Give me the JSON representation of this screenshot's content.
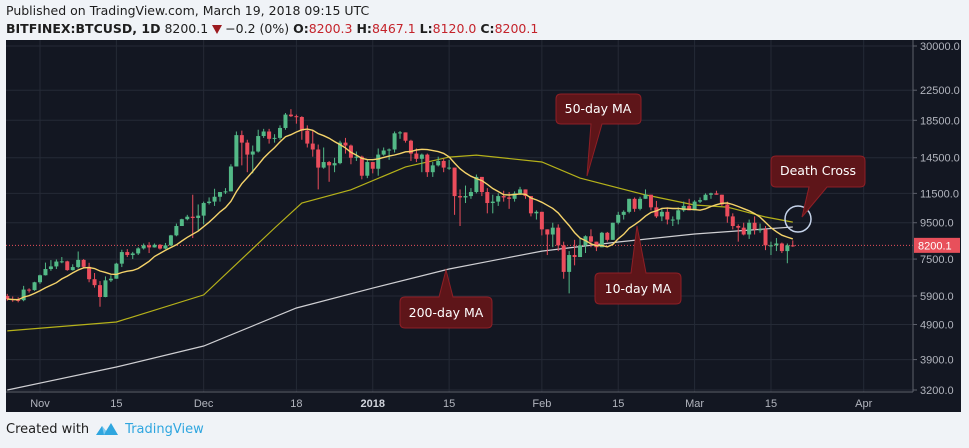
{
  "header": {
    "published": "Published on TradingView.com, March 19, 2018 09:15 UTC",
    "symbol": "BITFINEX:BTCUSD, 1D",
    "last": "8200.1",
    "change": "−0.2 (0%)",
    "o_label": "O:",
    "o": "8200.3",
    "h_label": "H:",
    "h": "8467.1",
    "l_label": "L:",
    "l": "8120.0",
    "c_label": "C:",
    "c": "8200.1"
  },
  "footer": {
    "created_with": "Created with",
    "brand": "TradingView",
    "brand_color": "#2fa6df"
  },
  "colors": {
    "background": "#131722",
    "grid": "#252a36",
    "up": "#53b987",
    "down": "#eb4d5c",
    "ma10": "#f5d36a",
    "ma50": "#b5b11a",
    "ma200": "#cfcfd3",
    "annotation": "#5e1519",
    "price_label": "#e8505b"
  },
  "chart_data": {
    "type": "candlestick",
    "title": "",
    "yscale": "log",
    "ylim": [
      3100,
      31000
    ],
    "xlim": [
      "2017-10-26",
      "2018-04-11"
    ],
    "grid": true,
    "y_ticks": [
      "30000.0",
      "22500.0",
      "18500.0",
      "14500.0",
      "11500.0",
      "9500.0",
      "7500.0",
      "5900.0",
      "4900.0",
      "3900.0",
      "3200.0"
    ],
    "x_ticks": [
      {
        "date": "2017-11-01",
        "label": "Nov"
      },
      {
        "date": "2017-11-15",
        "label": "15"
      },
      {
        "date": "2017-12-01",
        "label": "Dec"
      },
      {
        "date": "2017-12-18",
        "label": "18"
      },
      {
        "date": "2018-01-01",
        "label": "2018",
        "bold": true
      },
      {
        "date": "2018-01-15",
        "label": "15"
      },
      {
        "date": "2018-02-01",
        "label": "Feb"
      },
      {
        "date": "2018-02-15",
        "label": "15"
      },
      {
        "date": "2018-03-01",
        "label": "Mar"
      },
      {
        "date": "2018-03-15",
        "label": "15"
      },
      {
        "date": "2018-04-01",
        "label": "Apr"
      }
    ],
    "last_price": {
      "value": 8200.1,
      "label": "8200.1"
    },
    "columns": [
      "date",
      "open",
      "high",
      "low",
      "close"
    ],
    "ohlc": [
      [
        "2017-10-26",
        5900,
        5980,
        5720,
        5780
      ],
      [
        "2017-10-27",
        5780,
        5880,
        5680,
        5750
      ],
      [
        "2017-10-28",
        5750,
        5850,
        5660,
        5740
      ],
      [
        "2017-10-29",
        5740,
        6300,
        5700,
        6150
      ],
      [
        "2017-10-30",
        6150,
        6200,
        6030,
        6130
      ],
      [
        "2017-10-31",
        6130,
        6470,
        6100,
        6450
      ],
      [
        "2017-11-01",
        6450,
        6780,
        6380,
        6750
      ],
      [
        "2017-11-02",
        6750,
        7330,
        6740,
        7030
      ],
      [
        "2017-11-03",
        7030,
        7450,
        6950,
        7150
      ],
      [
        "2017-11-04",
        7150,
        7480,
        7030,
        7380
      ],
      [
        "2017-11-05",
        7380,
        7600,
        7300,
        7390
      ],
      [
        "2017-11-06",
        7390,
        7420,
        6950,
        6980
      ],
      [
        "2017-11-07",
        6980,
        7250,
        6960,
        7120
      ],
      [
        "2017-11-08",
        7120,
        7880,
        7060,
        7460
      ],
      [
        "2017-11-09",
        7460,
        7500,
        7050,
        7130
      ],
      [
        "2017-11-10",
        7130,
        7320,
        6450,
        6580
      ],
      [
        "2017-11-11",
        6580,
        6850,
        6230,
        6330
      ],
      [
        "2017-11-12",
        6330,
        6500,
        5500,
        5860
      ],
      [
        "2017-11-13",
        5860,
        6700,
        5850,
        6530
      ],
      [
        "2017-11-14",
        6530,
        6750,
        6460,
        6600
      ],
      [
        "2017-11-15",
        6600,
        7320,
        6600,
        7280
      ],
      [
        "2017-11-16",
        7280,
        7970,
        7120,
        7850
      ],
      [
        "2017-11-17",
        7850,
        8000,
        7600,
        7700
      ],
      [
        "2017-11-18",
        7700,
        7860,
        7500,
        7780
      ],
      [
        "2017-11-19",
        7780,
        8100,
        7700,
        8040
      ],
      [
        "2017-11-20",
        8040,
        8300,
        7980,
        8200
      ],
      [
        "2017-11-21",
        8200,
        8370,
        7800,
        8090
      ],
      [
        "2017-11-22",
        8090,
        8300,
        8080,
        8230
      ],
      [
        "2017-11-23",
        8230,
        8270,
        7980,
        8030
      ],
      [
        "2017-11-24",
        8030,
        8330,
        8000,
        8200
      ],
      [
        "2017-11-25",
        8200,
        8780,
        8160,
        8750
      ],
      [
        "2017-11-26",
        8750,
        9450,
        8700,
        9300
      ],
      [
        "2017-11-27",
        9300,
        9750,
        9300,
        9720
      ],
      [
        "2017-11-28",
        9720,
        10000,
        9650,
        9880
      ],
      [
        "2017-11-29",
        9880,
        11400,
        8600,
        9800
      ],
      [
        "2017-11-30",
        9800,
        10700,
        9000,
        9950
      ],
      [
        "2017-12-01",
        9950,
        10900,
        9400,
        10800
      ],
      [
        "2017-12-02",
        10800,
        11200,
        10700,
        10900
      ],
      [
        "2017-12-03",
        10900,
        11850,
        10600,
        11250
      ],
      [
        "2017-12-04",
        11250,
        11600,
        10900,
        11600
      ],
      [
        "2017-12-05",
        11600,
        11900,
        11450,
        11650
      ],
      [
        "2017-12-06",
        11650,
        13900,
        11650,
        13700
      ],
      [
        "2017-12-07",
        13700,
        17200,
        13700,
        16800
      ],
      [
        "2017-12-08",
        16800,
        17300,
        13800,
        16000
      ],
      [
        "2017-12-09",
        16000,
        16300,
        13200,
        14800
      ],
      [
        "2017-12-10",
        14800,
        15700,
        13100,
        15100
      ],
      [
        "2017-12-11",
        15100,
        17400,
        15000,
        16700
      ],
      [
        "2017-12-12",
        16700,
        17500,
        16500,
        17200
      ],
      [
        "2017-12-13",
        17200,
        17500,
        15900,
        16400
      ],
      [
        "2017-12-14",
        16400,
        16900,
        16000,
        16500
      ],
      [
        "2017-12-15",
        16500,
        17900,
        16300,
        17600
      ],
      [
        "2017-12-16",
        17600,
        19400,
        17400,
        19200
      ],
      [
        "2017-12-17",
        19200,
        19890,
        18900,
        19000
      ],
      [
        "2017-12-18",
        19000,
        19200,
        18100,
        18900
      ],
      [
        "2017-12-19",
        18900,
        19000,
        16300,
        17300
      ],
      [
        "2017-12-20",
        17300,
        17900,
        15500,
        15900
      ],
      [
        "2017-12-21",
        15900,
        17300,
        14600,
        15300
      ],
      [
        "2017-12-22",
        15300,
        15800,
        11800,
        13600
      ],
      [
        "2017-12-23",
        13600,
        15500,
        13500,
        14100
      ],
      [
        "2017-12-24",
        14100,
        14200,
        12400,
        13800
      ],
      [
        "2017-12-25",
        13800,
        14500,
        13200,
        14000
      ],
      [
        "2017-12-26",
        14000,
        16200,
        13900,
        16000
      ],
      [
        "2017-12-27",
        16000,
        16500,
        14900,
        15700
      ],
      [
        "2017-12-28",
        15700,
        15800,
        13900,
        14500
      ],
      [
        "2017-12-29",
        14500,
        15100,
        14200,
        14600
      ],
      [
        "2017-12-30",
        14600,
        14700,
        12600,
        12900
      ],
      [
        "2017-12-31",
        12900,
        14300,
        12700,
        14100
      ],
      [
        "2018-01-01",
        14100,
        14100,
        13100,
        13500
      ],
      [
        "2018-01-02",
        13500,
        15400,
        12900,
        14800
      ],
      [
        "2018-01-03",
        14800,
        15500,
        14700,
        15200
      ],
      [
        "2018-01-04",
        15200,
        15400,
        14300,
        15300
      ],
      [
        "2018-01-05",
        15300,
        17200,
        15000,
        17000
      ],
      [
        "2018-01-06",
        17000,
        17250,
        16400,
        17100
      ],
      [
        "2018-01-07",
        17100,
        17100,
        16000,
        16200
      ],
      [
        "2018-01-08",
        16200,
        16300,
        14200,
        14900
      ],
      [
        "2018-01-09",
        14900,
        15400,
        14100,
        14400
      ],
      [
        "2018-01-10",
        14400,
        14900,
        13200,
        14800
      ],
      [
        "2018-01-11",
        14800,
        14900,
        12800,
        13200
      ],
      [
        "2018-01-12",
        13200,
        14100,
        12800,
        13800
      ],
      [
        "2018-01-13",
        13800,
        14600,
        13700,
        14200
      ],
      [
        "2018-01-14",
        14200,
        14400,
        13200,
        13600
      ],
      [
        "2018-01-15",
        13600,
        14300,
        13400,
        13600
      ],
      [
        "2018-01-16",
        13600,
        13600,
        10000,
        11300
      ],
      [
        "2018-01-17",
        11300,
        11800,
        9300,
        11200
      ],
      [
        "2018-01-18",
        11200,
        12100,
        10800,
        11300
      ],
      [
        "2018-01-19",
        11300,
        11900,
        11100,
        11600
      ],
      [
        "2018-01-20",
        11600,
        13000,
        11500,
        12800
      ],
      [
        "2018-01-21",
        12800,
        12800,
        11300,
        11600
      ],
      [
        "2018-01-22",
        11600,
        11900,
        10100,
        10800
      ],
      [
        "2018-01-23",
        10800,
        11400,
        10100,
        10900
      ],
      [
        "2018-01-24",
        10900,
        11500,
        10600,
        11300
      ],
      [
        "2018-01-25",
        11300,
        11700,
        10900,
        11200
      ],
      [
        "2018-01-26",
        11200,
        11600,
        10400,
        11100
      ],
      [
        "2018-01-27",
        11100,
        11650,
        10900,
        11500
      ],
      [
        "2018-01-28",
        11500,
        12000,
        11400,
        11800
      ],
      [
        "2018-01-29",
        11800,
        11800,
        11100,
        11300
      ],
      [
        "2018-01-30",
        11300,
        11300,
        9900,
        10100
      ],
      [
        "2018-01-31",
        10100,
        10300,
        9700,
        10200
      ],
      [
        "2018-02-01",
        10200,
        10200,
        8750,
        9100
      ],
      [
        "2018-02-02",
        9100,
        9100,
        7700,
        8800
      ],
      [
        "2018-02-03",
        8800,
        9500,
        8100,
        9200
      ],
      [
        "2018-02-04",
        9200,
        9400,
        7900,
        8200
      ],
      [
        "2018-02-05",
        8200,
        8400,
        6600,
        6900
      ],
      [
        "2018-02-06",
        6900,
        7900,
        6000,
        7700
      ],
      [
        "2018-02-07",
        7700,
        8500,
        7200,
        7600
      ],
      [
        "2018-02-08",
        7600,
        8600,
        7600,
        8200
      ],
      [
        "2018-02-09",
        8200,
        8750,
        7800,
        8700
      ],
      [
        "2018-02-10",
        8700,
        9100,
        8100,
        8400
      ],
      [
        "2018-02-11",
        8400,
        8400,
        7900,
        8100
      ],
      [
        "2018-02-12",
        8100,
        8950,
        8100,
        8900
      ],
      [
        "2018-02-13",
        8900,
        8950,
        8400,
        8500
      ],
      [
        "2018-02-14",
        8500,
        9500,
        8500,
        9500
      ],
      [
        "2018-02-15",
        9500,
        10200,
        9400,
        10000
      ],
      [
        "2018-02-16",
        10000,
        10300,
        9700,
        10200
      ],
      [
        "2018-02-17",
        10200,
        11100,
        10100,
        11100
      ],
      [
        "2018-02-18",
        11100,
        11200,
        10200,
        10400
      ],
      [
        "2018-02-19",
        10400,
        11250,
        10300,
        11100
      ],
      [
        "2018-02-20",
        11100,
        11800,
        11100,
        11400
      ],
      [
        "2018-02-21",
        11400,
        11400,
        10300,
        10500
      ],
      [
        "2018-02-22",
        10500,
        10950,
        9800,
        9900
      ],
      [
        "2018-02-23",
        9900,
        10400,
        9600,
        10200
      ],
      [
        "2018-02-24",
        10200,
        10500,
        9400,
        9700
      ],
      [
        "2018-02-25",
        9700,
        9900,
        9300,
        9700
      ],
      [
        "2018-02-26",
        9700,
        10500,
        9400,
        10300
      ],
      [
        "2018-02-27",
        10300,
        10900,
        10200,
        10600
      ],
      [
        "2018-02-28",
        10600,
        11100,
        10300,
        10300
      ],
      [
        "2018-03-01",
        10300,
        11000,
        10300,
        10900
      ],
      [
        "2018-03-02",
        10900,
        11200,
        10800,
        11000
      ],
      [
        "2018-03-03",
        11000,
        11500,
        11000,
        11400
      ],
      [
        "2018-03-04",
        11400,
        11550,
        11100,
        11500
      ],
      [
        "2018-03-05",
        11500,
        11700,
        11400,
        11400
      ],
      [
        "2018-03-06",
        11400,
        11400,
        10600,
        10700
      ],
      [
        "2018-03-07",
        10700,
        10900,
        9500,
        9900
      ],
      [
        "2018-03-08",
        9900,
        10100,
        9100,
        9300
      ],
      [
        "2018-03-09",
        9300,
        9400,
        8400,
        9200
      ],
      [
        "2018-03-10",
        9200,
        9500,
        8750,
        8800
      ],
      [
        "2018-03-11",
        8800,
        9700,
        8550,
        9500
      ],
      [
        "2018-03-12",
        9500,
        9900,
        8800,
        9100
      ],
      [
        "2018-03-13",
        9100,
        9450,
        8900,
        9100
      ],
      [
        "2018-03-14",
        9100,
        9300,
        7950,
        8200
      ],
      [
        "2018-03-15",
        8200,
        8400,
        7700,
        8200
      ],
      [
        "2018-03-16",
        8200,
        8600,
        7900,
        8300
      ],
      [
        "2018-03-17",
        8300,
        8350,
        7800,
        7900
      ],
      [
        "2018-03-18",
        7900,
        8300,
        7300,
        8200
      ],
      [
        "2018-03-19",
        8200.3,
        8467.1,
        8120.0,
        8200.1
      ]
    ],
    "ma10_period": 10,
    "ma50": [
      [
        "2017-10-26",
        4700
      ],
      [
        "2017-11-15",
        4980
      ],
      [
        "2017-12-01",
        5940
      ],
      [
        "2017-12-14",
        9180
      ],
      [
        "2017-12-19",
        10800
      ],
      [
        "2017-12-28",
        11770
      ],
      [
        "2018-01-07",
        13660
      ],
      [
        "2018-01-15",
        14560
      ],
      [
        "2018-01-20",
        14750
      ],
      [
        "2018-02-01",
        14100
      ],
      [
        "2018-02-08",
        12700
      ],
      [
        "2018-02-20",
        11390
      ],
      [
        "2018-03-01",
        10660
      ],
      [
        "2018-03-07",
        10520
      ],
      [
        "2018-03-14",
        9860
      ],
      [
        "2018-03-19",
        9540
      ]
    ],
    "ma200": [
      [
        "2017-10-26",
        3200
      ],
      [
        "2017-11-15",
        3716
      ],
      [
        "2017-12-01",
        4260
      ],
      [
        "2017-12-18",
        5455
      ],
      [
        "2018-01-01",
        6210
      ],
      [
        "2018-01-15",
        7030
      ],
      [
        "2018-02-01",
        7900
      ],
      [
        "2018-02-15",
        8380
      ],
      [
        "2018-03-01",
        8830
      ],
      [
        "2018-03-19",
        9240
      ]
    ],
    "annotations": [
      {
        "text": "50-day MA",
        "target": "ma50"
      },
      {
        "text": "10-day MA",
        "target": "ma10"
      },
      {
        "text": "200-day MA",
        "target": "ma200"
      },
      {
        "text": "Death Cross",
        "target": "crossover"
      }
    ]
  }
}
